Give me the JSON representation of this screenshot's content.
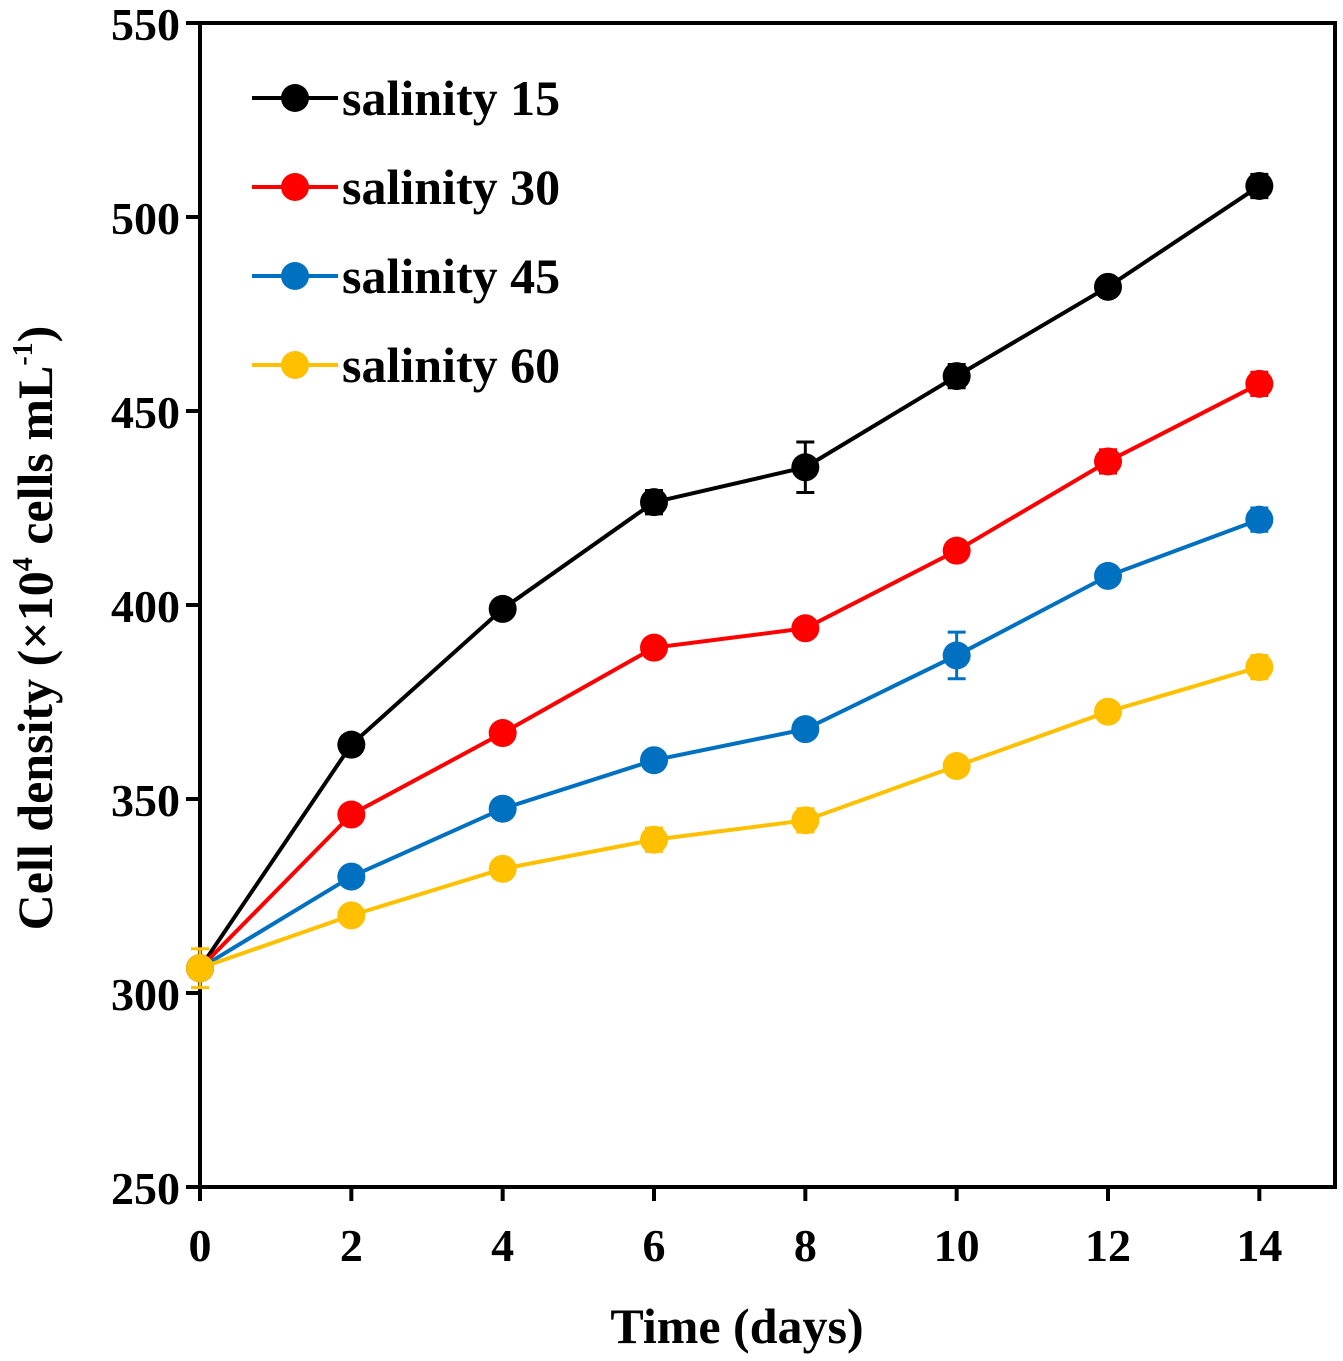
{
  "chart_data": {
    "type": "line",
    "title": "",
    "xlabel": "Time (days)",
    "ylabel_main": "Cell density (×10",
    "ylabel_sup1": "4",
    "ylabel_mid": " cells mL",
    "ylabel_sup2": "-1",
    "ylabel_end": ")",
    "xlim": [
      0,
      15
    ],
    "ylim": [
      250,
      550
    ],
    "xticks": [
      0,
      2,
      4,
      6,
      8,
      10,
      12,
      14
    ],
    "yticks": [
      250,
      300,
      350,
      400,
      450,
      500,
      550
    ],
    "grid": false,
    "legend_position": "top-left",
    "x": [
      0,
      2,
      4,
      6,
      8,
      10,
      12,
      14
    ],
    "series": [
      {
        "name": "salinity 15",
        "color": "#000000",
        "values": [
          306.4,
          364,
          399,
          426.5,
          435.5,
          459,
          482,
          508
        ],
        "errors": [
          2,
          2,
          2,
          3,
          6.5,
          3,
          2,
          3
        ]
      },
      {
        "name": "salinity 30",
        "color": "#ff0000",
        "values": [
          306.4,
          346,
          367,
          389,
          394,
          414,
          437,
          457
        ],
        "errors": [
          2,
          2,
          2,
          2,
          2,
          2,
          3,
          3
        ]
      },
      {
        "name": "salinity 45",
        "color": "#0070c0",
        "values": [
          306.4,
          330,
          347.5,
          360,
          368,
          387,
          407.5,
          422
        ],
        "errors": [
          2,
          2,
          2,
          2,
          2,
          6,
          2,
          3
        ]
      },
      {
        "name": "salinity 60",
        "color": "#ffc000",
        "values": [
          306.4,
          320,
          332,
          339.5,
          344.5,
          358.5,
          372.5,
          384
        ],
        "errors": [
          5,
          2,
          2,
          3,
          3,
          2,
          2,
          3
        ]
      }
    ]
  }
}
